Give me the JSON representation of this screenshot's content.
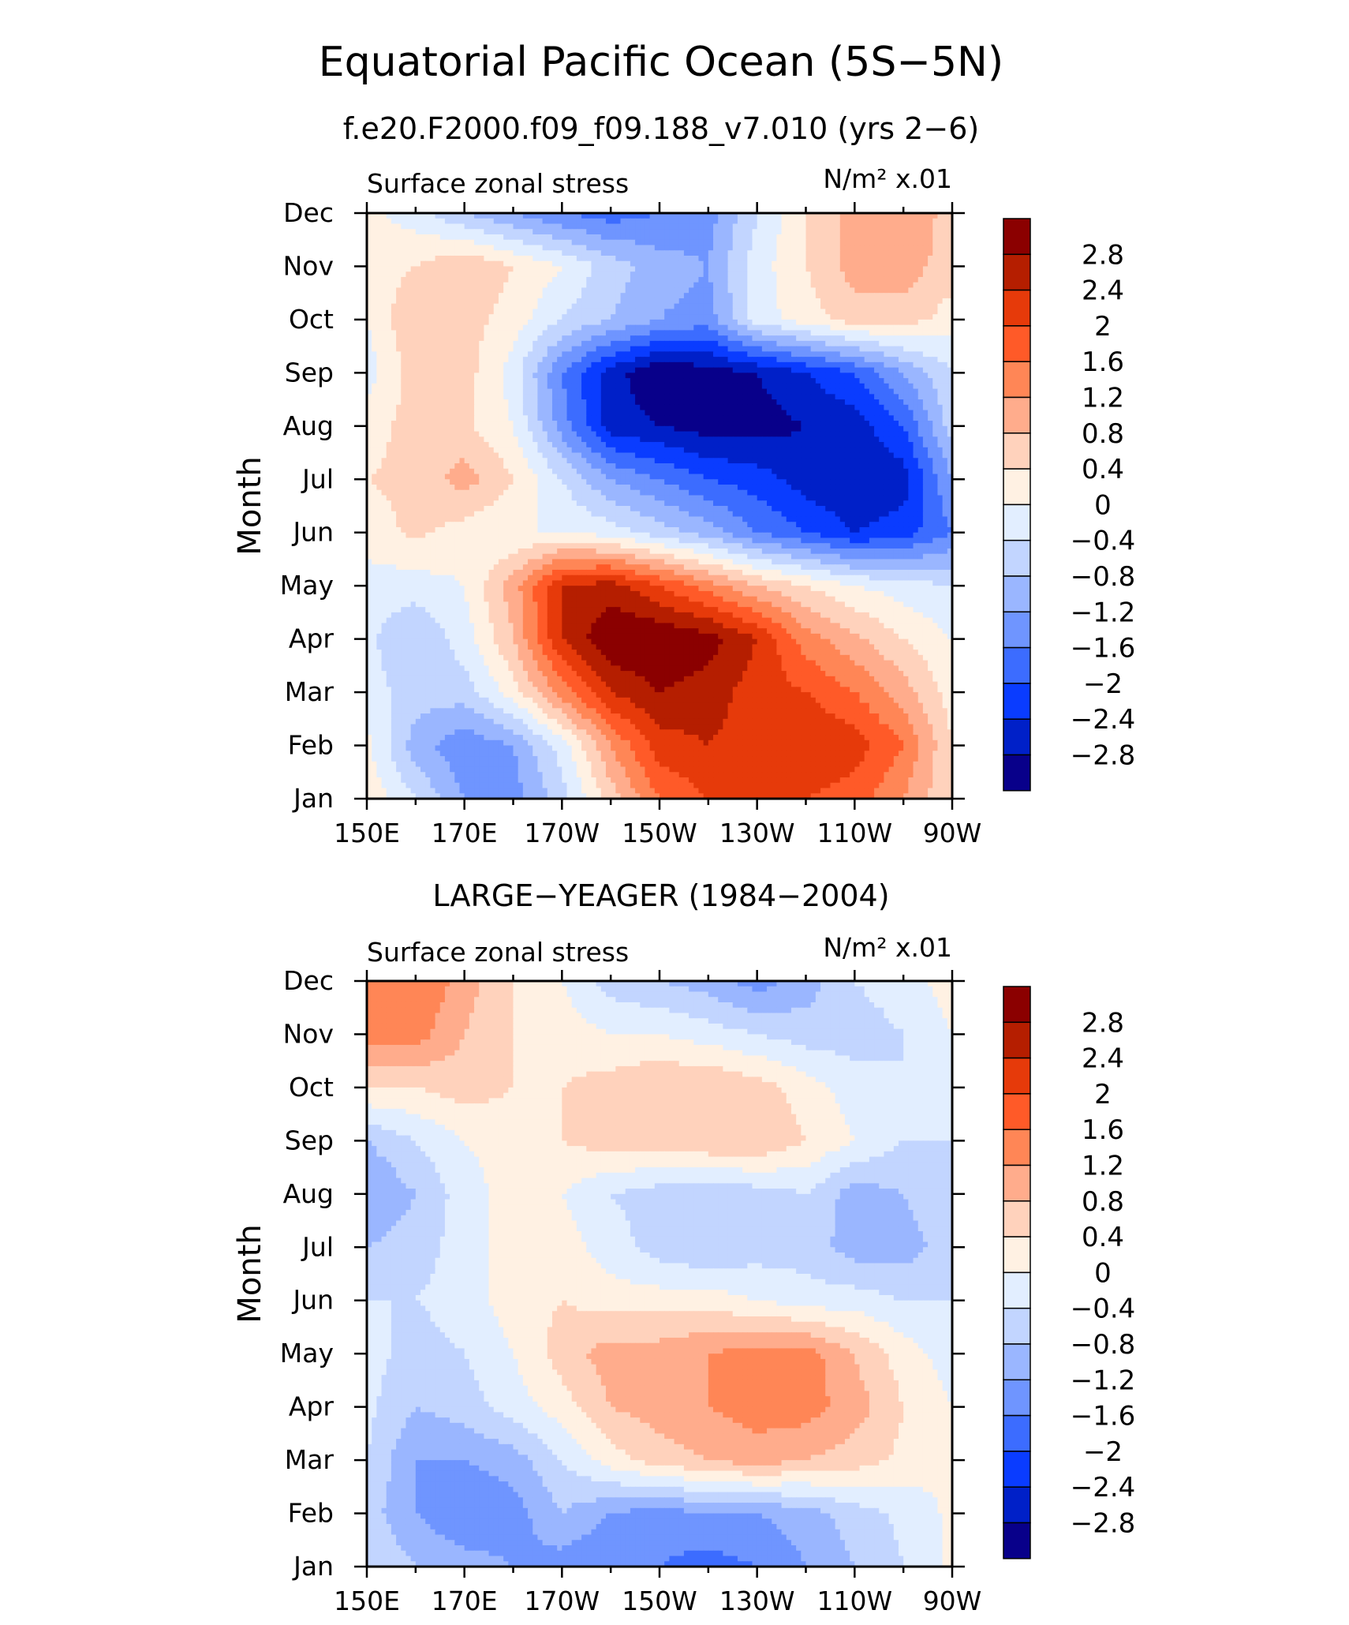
{
  "title": "Equatorial Pacific Ocean (5S−5N)",
  "colors": [
    "#08008a",
    "#0020c8",
    "#0a3cff",
    "#3c6cff",
    "#6f95ff",
    "#9ab6ff",
    "#c2d5ff",
    "#e2eeff",
    "#fff1e3",
    "#ffd2bc",
    "#ffac8c",
    "#ff8656",
    "#ff5a28",
    "#e63a0a",
    "#b51e00",
    "#8b0000"
  ],
  "levels_text": [
    "2.8",
    "2.4",
    "2",
    "1.6",
    "1.2",
    "0.8",
    "0.4",
    "0",
    "−0.4",
    "−0.8",
    "−1.2",
    "−1.6",
    "−2",
    "−2.4",
    "−2.8"
  ],
  "x_ticks": [
    "150E",
    "170E",
    "170W",
    "150W",
    "130W",
    "110W",
    "90W"
  ],
  "months": [
    "Jan",
    "Feb",
    "Mar",
    "Apr",
    "May",
    "Jun",
    "Jul",
    "Aug",
    "Sep",
    "Oct",
    "Nov",
    "Dec"
  ],
  "chart_data": [
    {
      "type": "heatmap",
      "subtitle": "f.e20.F2000.f09_f09.188_v7.010 (yrs 2−6)",
      "left_label": "Surface zonal stress",
      "units": "N/m² x.01",
      "ylabel": "Month",
      "xlim": [
        150,
        270
      ],
      "xlabel": "",
      "contour_levels": [
        -2.8,
        -2.4,
        -2.0,
        -1.6,
        -1.2,
        -0.8,
        -0.4,
        0,
        0.4,
        0.8,
        1.2,
        1.6,
        2.0,
        2.4,
        2.8
      ],
      "x": [
        150,
        160,
        170,
        180,
        190,
        200,
        210,
        220,
        230,
        240,
        250,
        260,
        270
      ],
      "y_months": [
        "Jan",
        "Feb",
        "Mar",
        "Apr",
        "May",
        "Jun",
        "Jul",
        "Aug",
        "Sep",
        "Oct",
        "Nov",
        "Dec"
      ],
      "values": [
        [
          0.3,
          -0.4,
          -1.2,
          -1.4,
          -0.6,
          0.6,
          1.6,
          2.0,
          2.2,
          2.0,
          1.8,
          1.2,
          0.4
        ],
        [
          0.1,
          -1.0,
          -1.5,
          -1.2,
          -0.2,
          1.2,
          2.2,
          2.4,
          2.2,
          2.4,
          2.2,
          1.6,
          0.4
        ],
        [
          -0.2,
          -0.6,
          -0.6,
          0.2,
          1.4,
          2.4,
          2.8,
          2.6,
          2.2,
          2.0,
          1.6,
          1.0,
          0.2
        ],
        [
          -0.3,
          -0.8,
          -0.2,
          0.8,
          2.4,
          3.2,
          3.2,
          3.0,
          2.4,
          1.4,
          0.9,
          0.4,
          0.0
        ],
        [
          -0.2,
          -0.2,
          0.0,
          1.0,
          2.4,
          2.6,
          2.0,
          1.4,
          0.8,
          0.4,
          0.0,
          -0.2,
          -0.4
        ],
        [
          0.2,
          0.5,
          0.2,
          0.0,
          0.0,
          -0.2,
          -0.6,
          -1.0,
          -1.6,
          -2.0,
          -2.4,
          -2.2,
          -1.6
        ],
        [
          0.4,
          0.5,
          1.0,
          0.4,
          -0.4,
          -1.2,
          -1.6,
          -2.0,
          -2.2,
          -2.6,
          -2.8,
          -2.6,
          -1.2
        ],
        [
          0.2,
          0.6,
          0.5,
          0.0,
          -1.4,
          -2.6,
          -2.8,
          -3.0,
          -3.0,
          -2.8,
          -2.6,
          -2.0,
          -0.6
        ],
        [
          -0.2,
          0.6,
          0.6,
          -0.2,
          -1.6,
          -2.6,
          -3.2,
          -3.0,
          -2.8,
          -2.4,
          -2.0,
          -1.2,
          -0.4
        ],
        [
          0.0,
          0.8,
          0.6,
          0.2,
          -0.4,
          -0.8,
          -1.2,
          -1.4,
          -0.2,
          0.2,
          0.6,
          0.6,
          0.2
        ],
        [
          0.2,
          0.4,
          0.8,
          0.4,
          0.0,
          -0.6,
          -1.0,
          -1.2,
          -0.2,
          0.4,
          1.0,
          1.0,
          0.6
        ],
        [
          0.1,
          -0.2,
          -0.8,
          -1.2,
          -1.6,
          -1.8,
          -1.6,
          -1.4,
          -0.4,
          0.4,
          1.0,
          1.2,
          0.6
        ]
      ]
    },
    {
      "type": "heatmap",
      "subtitle": "LARGE−YEAGER (1984−2004)",
      "left_label": "Surface zonal stress",
      "units": "N/m² x.01",
      "ylabel": "Month",
      "xlim": [
        150,
        270
      ],
      "xlabel": "",
      "contour_levels": [
        -2.8,
        -2.4,
        -2.0,
        -1.6,
        -1.2,
        -0.8,
        -0.4,
        0,
        0.4,
        0.8,
        1.2,
        1.6,
        2.0,
        2.4,
        2.8
      ],
      "x": [
        150,
        160,
        170,
        180,
        190,
        200,
        210,
        220,
        230,
        240,
        250,
        260,
        270
      ],
      "y_months": [
        "Jan",
        "Feb",
        "Mar",
        "Apr",
        "May",
        "Jun",
        "Jul",
        "Aug",
        "Sep",
        "Oct",
        "Nov",
        "Dec"
      ],
      "values": [
        [
          -0.4,
          -0.8,
          -1.0,
          -1.2,
          -1.4,
          -1.6,
          -1.6,
          -1.8,
          -1.6,
          -1.2,
          -0.8,
          -0.4,
          0.1
        ],
        [
          -0.6,
          -1.2,
          -1.6,
          -1.4,
          -0.8,
          -1.2,
          -1.4,
          -1.2,
          -1.2,
          -1.0,
          -0.6,
          -0.3,
          0.1
        ],
        [
          -0.4,
          -1.2,
          -1.2,
          -1.0,
          -0.4,
          0.2,
          0.6,
          0.8,
          1.0,
          0.8,
          0.6,
          0.3,
          0.0
        ],
        [
          -0.3,
          -0.8,
          -0.6,
          -0.2,
          0.2,
          0.8,
          1.0,
          1.2,
          1.4,
          1.4,
          1.0,
          0.4,
          0.0
        ],
        [
          -0.2,
          -0.6,
          -0.4,
          0.0,
          0.6,
          1.0,
          1.0,
          1.2,
          1.4,
          1.4,
          0.8,
          0.2,
          -0.2
        ],
        [
          -0.4,
          -0.4,
          -0.2,
          0.2,
          0.4,
          0.2,
          0.2,
          0.2,
          0.0,
          -0.2,
          -0.2,
          -0.4,
          -0.4
        ],
        [
          -0.8,
          -0.6,
          -0.2,
          0.2,
          0.2,
          -0.2,
          -0.6,
          -0.8,
          -0.6,
          -0.6,
          -1.0,
          -1.0,
          -0.6
        ],
        [
          -1.2,
          -0.8,
          -0.2,
          0.2,
          0.0,
          -0.4,
          -0.6,
          -0.8,
          -0.6,
          -0.4,
          -1.0,
          -0.8,
          -0.4
        ],
        [
          -0.8,
          -0.4,
          0.0,
          0.2,
          0.4,
          0.6,
          0.6,
          0.8,
          0.8,
          0.4,
          0.0,
          -0.4,
          -0.4
        ],
        [
          0.4,
          0.4,
          0.6,
          0.4,
          0.4,
          0.6,
          0.8,
          0.8,
          0.6,
          0.2,
          -0.2,
          -0.4,
          -0.2
        ],
        [
          1.4,
          1.4,
          0.8,
          0.4,
          0.2,
          0.0,
          0.0,
          -0.2,
          -0.4,
          -0.6,
          -0.6,
          -0.4,
          0.0
        ],
        [
          1.2,
          1.6,
          1.0,
          0.4,
          0.0,
          -0.6,
          -0.8,
          -1.0,
          -1.4,
          -1.0,
          -0.4,
          -0.2,
          0.2
        ]
      ]
    }
  ]
}
